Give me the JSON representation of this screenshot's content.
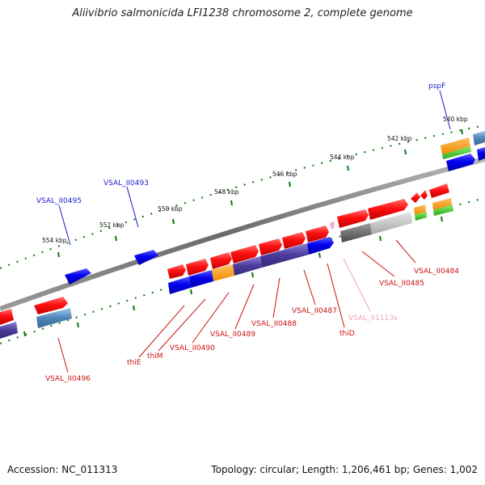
{
  "title": "Aliivibrio salmonicida LFI1238 chromosome 2, complete genome",
  "footer": {
    "accession": "Accession: NC_011313",
    "topology": "Topology: circular; Length: 1,206,461 bp; Genes: 1,002"
  },
  "scale_labels": [
    "540 kbp",
    "542 kbp",
    "544 kbp",
    "546 kbp",
    "548 kbp",
    "550 kbp",
    "552 kbp",
    "554 kbp"
  ],
  "gene_labels": {
    "pspF": "pspF",
    "VSAL_II0493": "VSAL_II0493",
    "VSAL_II0495": "VSAL_II0495",
    "VSAL_II0496": "VSAL_II0496",
    "thiE": "thiE",
    "thiM": "thiM",
    "VSAL_II0490": "VSAL_II0490",
    "VSAL_II0489": "VSAL_II0489",
    "VSAL_II0488": "VSAL_II0488",
    "VSAL_II0487": "VSAL_II0487",
    "thiD": "thiD",
    "VSAL_II1113s": "VSAL_II1113s",
    "VSAL_II0485": "VSAL_II0485",
    "VSAL_II0484": "VSAL_II0484"
  },
  "colors": {
    "forward_cds": "#e00000",
    "reverse_cds": "#0000e0",
    "backbone": "#808080",
    "tick": "#0a7a0a",
    "label_blue": "#1a1ac8",
    "label_red": "#cc1111",
    "label_pink": "#f0a0c0"
  }
}
